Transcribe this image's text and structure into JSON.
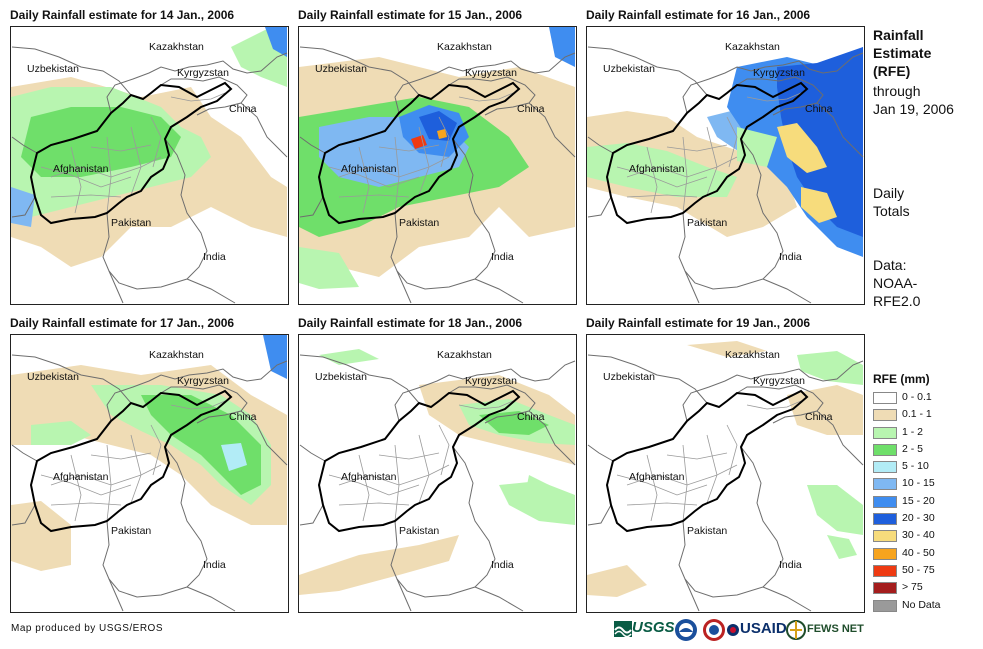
{
  "panels": [
    {
      "title": "Daily Rainfall estimate for 14 Jan., 2006",
      "day": 14
    },
    {
      "title": "Daily Rainfall estimate for 15 Jan., 2006",
      "day": 15
    },
    {
      "title": "Daily Rainfall estimate for 16 Jan., 2006",
      "day": 16
    },
    {
      "title": "Daily Rainfall estimate for 17 Jan., 2006",
      "day": 17
    },
    {
      "title": "Daily Rainfall estimate for 18 Jan., 2006",
      "day": 18
    },
    {
      "title": "Daily Rainfall estimate for 19 Jan., 2006",
      "day": 19
    }
  ],
  "country_labels": {
    "kazakhstan": "Kazakhstan",
    "kyrgyzstan": "Kyrgyzstan",
    "uzbekistan": "Uzbekistan",
    "china": "China",
    "afghanistan": "Afghanistan",
    "pakistan": "Pakistan",
    "india": "India"
  },
  "sidebar": {
    "title_lines": [
      "Rainfall",
      "Estimate",
      "(RFE)"
    ],
    "through_line1": "through",
    "through_line2": "Jan 19, 2006",
    "daily_line1": "Daily",
    "daily_line2": "Totals",
    "data_line1": "Data:",
    "data_line2": "NOAA-",
    "data_line3": "RFE2.0"
  },
  "legend": {
    "title": "RFE (mm)",
    "items": [
      {
        "label": "0 - 0.1",
        "color": "#ffffff"
      },
      {
        "label": "0.1 - 1",
        "color": "#efdcb5"
      },
      {
        "label": "1 - 2",
        "color": "#b8f5b0"
      },
      {
        "label": "2 - 5",
        "color": "#6fdf6a"
      },
      {
        "label": "5 - 10",
        "color": "#b2ecf6"
      },
      {
        "label": "10 - 15",
        "color": "#7fb8f2"
      },
      {
        "label": "15 - 20",
        "color": "#3f8df0"
      },
      {
        "label": "20 - 30",
        "color": "#1e5fdc"
      },
      {
        "label": "30 - 40",
        "color": "#f7dc7c"
      },
      {
        "label": "40 - 50",
        "color": "#f7a41e"
      },
      {
        "label": "50 - 75",
        "color": "#ee3a12"
      },
      {
        "label": "> 75",
        "color": "#a41d1d"
      },
      {
        "label": "No Data",
        "color": "#9a9a9a"
      }
    ]
  },
  "footer": {
    "credit": "Map produced by USGS/EROS",
    "usgs": "USGS",
    "usaid": "USAID",
    "fewsnet": "FEWS NET"
  }
}
